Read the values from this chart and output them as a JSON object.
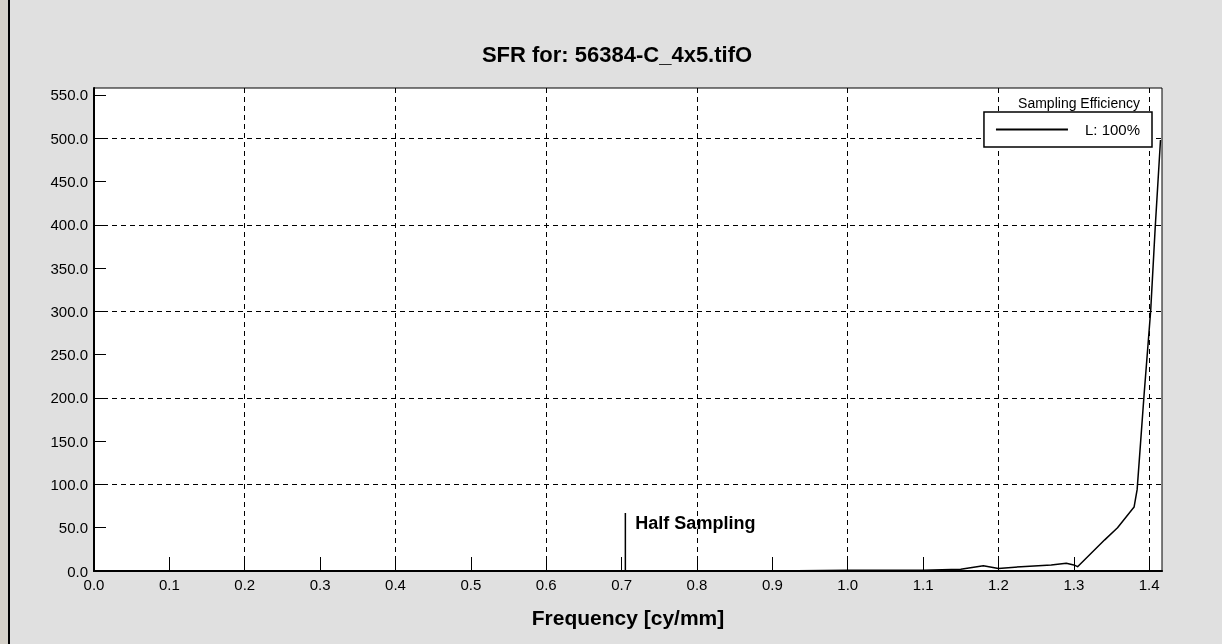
{
  "chart_data": {
    "type": "line",
    "title": "SFR for: 56384-C_4x5.tifO",
    "xlabel": "Frequency [cy/mm]",
    "legend_title": "Sampling Efficiency",
    "x": [
      0,
      0.1,
      0.2,
      0.3,
      0.4,
      0.5,
      0.6,
      0.7,
      0.8,
      0.9,
      1.0,
      1.1,
      1.15,
      1.18,
      1.2,
      1.23,
      1.27,
      1.29,
      1.3,
      1.305,
      1.341,
      1.358,
      1.38,
      1.384,
      1.393,
      1.402,
      1.408,
      1.415
    ],
    "series": [
      {
        "name": "L: 100%",
        "color": "#000000",
        "values": [
          0,
          0,
          0,
          0,
          0,
          0,
          0,
          0,
          0,
          0,
          1,
          1,
          2,
          6,
          3,
          5,
          7,
          9,
          7,
          5,
          36,
          50,
          74,
          94,
          201,
          301,
          397,
          498
        ]
      }
    ],
    "xlim": [
      0,
      1.417
    ],
    "ylim": [
      0,
      558
    ],
    "xticks": [
      {
        "value": 0,
        "label": "0.0"
      },
      0.1,
      0.2,
      0.3,
      0.4,
      0.5,
      0.6,
      0.7,
      0.8,
      0.9,
      {
        "value": 1,
        "label": "1.0"
      },
      1.1,
      1.2,
      1.3,
      1.4
    ],
    "yticks": [
      {
        "value": 0,
        "label": "0.0"
      },
      {
        "value": 50,
        "label": "50.0"
      },
      {
        "value": 100,
        "label": "100.0"
      },
      {
        "value": 150,
        "label": "150.0"
      },
      {
        "value": 200,
        "label": "200.0"
      },
      {
        "value": 250,
        "label": "250.0"
      },
      {
        "value": 300,
        "label": "300.0"
      },
      {
        "value": 350,
        "label": "350.0"
      },
      {
        "value": 400,
        "label": "400.0"
      },
      {
        "value": 450,
        "label": "450.0"
      },
      {
        "value": 500,
        "label": "500.0"
      },
      {
        "value": 550,
        "label": "550.0"
      }
    ],
    "ref_lines": [
      {
        "axis": "x",
        "value": 0.705,
        "label": "Half Sampling"
      }
    ],
    "grid": true,
    "legend": "top right",
    "marker": "none",
    "line_style": "solid"
  }
}
